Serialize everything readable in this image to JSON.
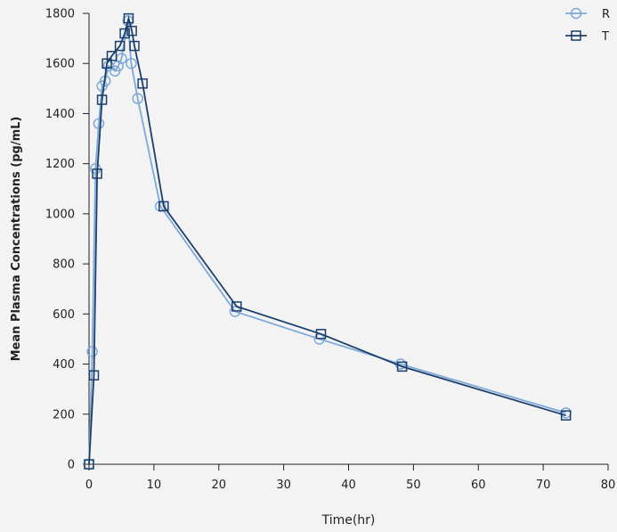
{
  "chart_data": {
    "type": "line",
    "title": "",
    "xlabel": "Time(hr)",
    "ylabel": "Mean Plasma Concentrations (pg/mL)",
    "xlim": [
      0,
      80
    ],
    "ylim": [
      0,
      1800
    ],
    "xticks": [
      0,
      10,
      20,
      30,
      40,
      50,
      60,
      70,
      80
    ],
    "yticks": [
      0,
      200,
      400,
      600,
      800,
      1000,
      1200,
      1400,
      1600,
      1800
    ],
    "grid": false,
    "legend": "top-right",
    "series": [
      {
        "name": "R",
        "marker": "circle",
        "color": "#7ea9d8",
        "x": [
          0,
          0.5,
          1,
          1.5,
          2,
          2.5,
          3,
          4,
          4.5,
          5,
          6,
          6.5,
          7.5,
          11,
          22.5,
          35.5,
          48,
          73.5
        ],
        "y": [
          0,
          450,
          1180,
          1360,
          1510,
          1530,
          1590,
          1570,
          1590,
          1620,
          1770,
          1600,
          1460,
          1030,
          610,
          500,
          400,
          205
        ]
      },
      {
        "name": "T",
        "marker": "square",
        "color": "#1b3f6b",
        "x": [
          0,
          0.75,
          1.25,
          2,
          2.75,
          3.5,
          4.75,
          5.5,
          6.1,
          6.6,
          7,
          8.25,
          11.5,
          22.75,
          35.75,
          48.25,
          73.5
        ],
        "y": [
          0,
          355,
          1160,
          1455,
          1600,
          1630,
          1670,
          1720,
          1780,
          1730,
          1670,
          1520,
          1030,
          630,
          520,
          390,
          195
        ]
      }
    ]
  }
}
